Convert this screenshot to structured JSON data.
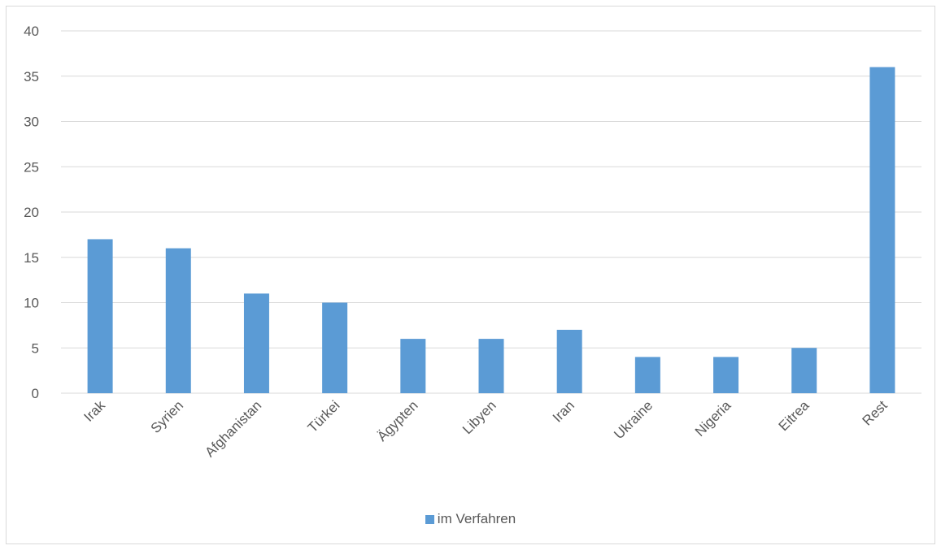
{
  "chart_data": {
    "type": "bar",
    "title": "",
    "xlabel": "",
    "ylabel": "",
    "categories": [
      "Irak",
      "Syrien",
      "Afghanistan",
      "Türkei",
      "Ägypten",
      "Libyen",
      "Iran",
      "Ukraine",
      "Nigeria",
      "Eitrea",
      "Rest"
    ],
    "series": [
      {
        "name": "im Verfahren",
        "color": "#5b9bd5",
        "values": [
          17,
          16,
          11,
          10,
          6,
          6,
          7,
          4,
          4,
          5,
          36
        ]
      }
    ],
    "ylim": [
      0,
      40
    ],
    "yticks": [
      "0",
      "5",
      "10",
      "15",
      "20",
      "25",
      "30",
      "35",
      "40"
    ],
    "grid": true,
    "legend_position": "bottom"
  }
}
